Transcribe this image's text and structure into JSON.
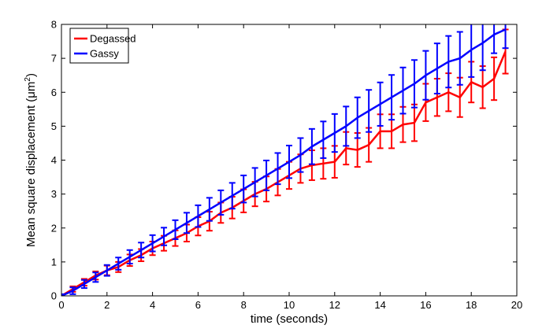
{
  "chart_data": {
    "type": "line",
    "title": "",
    "xlabel": "time (seconds)",
    "ylabel_main": "Mean square displacement (",
    "ylabel_unit": "μm",
    "ylabel_sup": "2",
    "ylabel_close": ")",
    "xlim": [
      0,
      20
    ],
    "ylim": [
      0,
      8
    ],
    "xticks": [
      0,
      2,
      4,
      6,
      8,
      10,
      12,
      14,
      16,
      18,
      20
    ],
    "yticks": [
      0,
      1,
      2,
      3,
      4,
      5,
      6,
      7,
      8
    ],
    "grid": false,
    "legend_position": "top-left",
    "error_bars": true,
    "series": [
      {
        "name": "Degassed",
        "color": "#ff0000",
        "x": [
          0,
          0.5,
          1,
          1.5,
          2,
          2.5,
          3,
          3.5,
          4,
          4.5,
          5,
          5.5,
          6,
          6.5,
          7,
          7.5,
          8,
          8.5,
          9,
          9.5,
          10,
          10.5,
          11,
          11.5,
          12,
          12.5,
          13,
          13.5,
          14,
          14.5,
          15,
          15.5,
          16,
          16.5,
          17,
          17.5,
          18,
          18.5,
          19,
          19.5
        ],
        "y": [
          0,
          0.2,
          0.4,
          0.6,
          0.75,
          0.85,
          1.05,
          1.2,
          1.4,
          1.55,
          1.7,
          1.85,
          2.05,
          2.2,
          2.45,
          2.6,
          2.8,
          3.0,
          3.15,
          3.35,
          3.55,
          3.75,
          3.85,
          3.9,
          3.95,
          4.35,
          4.3,
          4.45,
          4.85,
          4.85,
          5.05,
          5.1,
          5.7,
          5.85,
          6.0,
          5.85,
          6.3,
          6.15,
          6.4,
          7.2
        ],
        "error": [
          0.04,
          0.08,
          0.1,
          0.12,
          0.14,
          0.15,
          0.17,
          0.18,
          0.2,
          0.22,
          0.23,
          0.25,
          0.27,
          0.28,
          0.3,
          0.32,
          0.34,
          0.36,
          0.37,
          0.39,
          0.4,
          0.42,
          0.44,
          0.45,
          0.47,
          0.48,
          0.5,
          0.5,
          0.5,
          0.5,
          0.52,
          0.54,
          0.55,
          0.55,
          0.56,
          0.58,
          0.6,
          0.62,
          0.63,
          0.65
        ]
      },
      {
        "name": "Gassy",
        "color": "#0000ff",
        "x": [
          0,
          0.5,
          1,
          1.5,
          2,
          2.5,
          3,
          3.5,
          4,
          4.5,
          5,
          5.5,
          6,
          6.5,
          7,
          7.5,
          8,
          8.5,
          9,
          9.5,
          10,
          10.5,
          11,
          11.5,
          12,
          12.5,
          13,
          13.5,
          14,
          14.5,
          15,
          15.5,
          16,
          16.5,
          17,
          17.5,
          18,
          18.5,
          19,
          19.5
        ],
        "y": [
          0,
          0.15,
          0.35,
          0.55,
          0.75,
          0.95,
          1.15,
          1.35,
          1.55,
          1.75,
          1.95,
          2.15,
          2.35,
          2.55,
          2.75,
          2.95,
          3.15,
          3.35,
          3.55,
          3.75,
          3.95,
          4.15,
          4.4,
          4.6,
          4.8,
          5.0,
          5.25,
          5.45,
          5.65,
          5.85,
          6.05,
          6.25,
          6.5,
          6.7,
          6.9,
          7.0,
          7.25,
          7.45,
          7.7,
          7.85
        ],
        "error": [
          0.05,
          0.1,
          0.12,
          0.14,
          0.16,
          0.18,
          0.2,
          0.22,
          0.24,
          0.26,
          0.28,
          0.3,
          0.32,
          0.34,
          0.36,
          0.38,
          0.4,
          0.42,
          0.44,
          0.46,
          0.48,
          0.5,
          0.52,
          0.54,
          0.56,
          0.58,
          0.6,
          0.62,
          0.64,
          0.66,
          0.68,
          0.7,
          0.72,
          0.74,
          0.76,
          0.78,
          0.8,
          0.8,
          0.55,
          0.55
        ]
      }
    ]
  }
}
